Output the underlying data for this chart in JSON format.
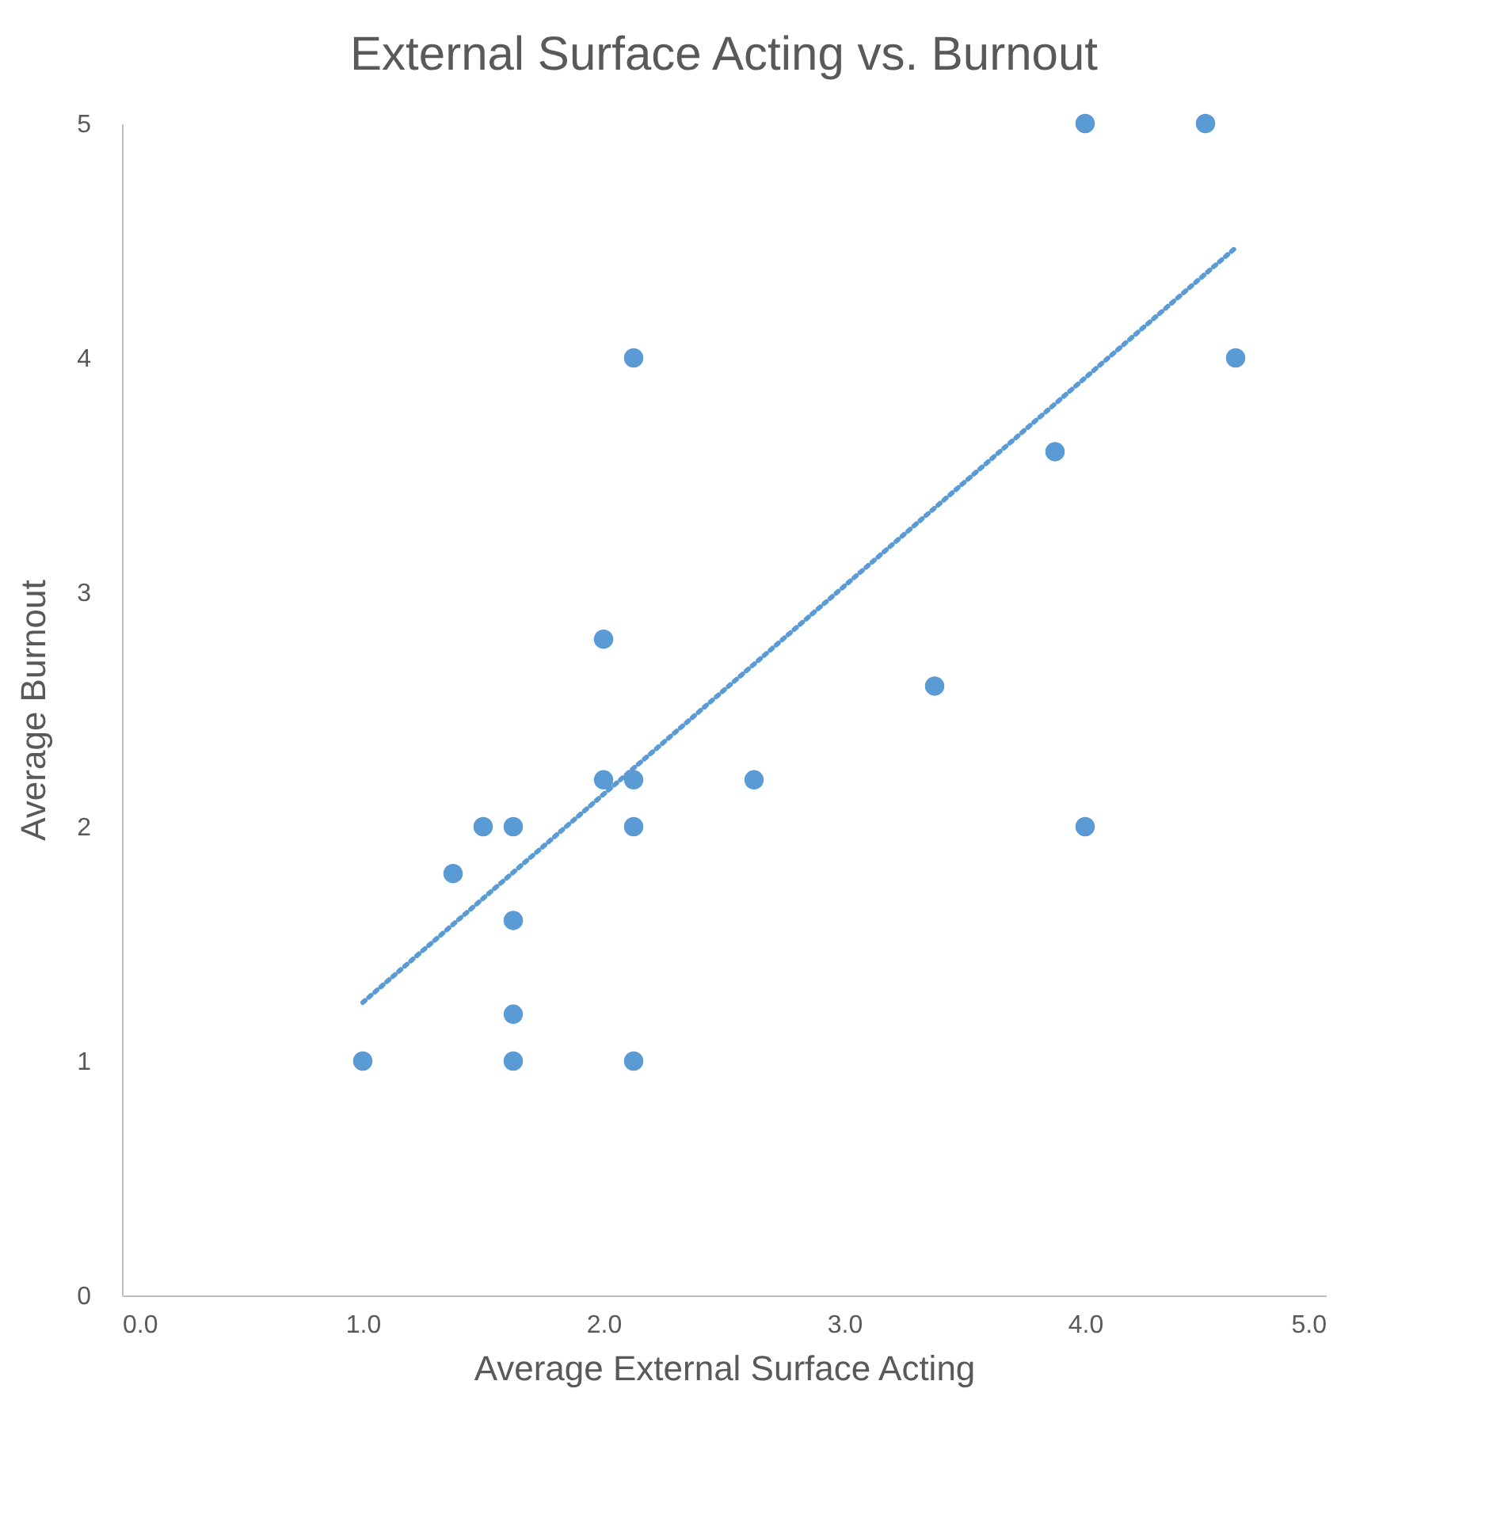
{
  "chart_data": {
    "type": "scatter",
    "title": "External Surface Acting vs. Burnout",
    "xlabel": "Average External Surface Acting",
    "ylabel": "Average Burnout",
    "xlim": [
      0,
      5
    ],
    "xticks": [
      {
        "value": 0,
        "label": "0.0"
      },
      {
        "value": 1,
        "label": "1.0"
      },
      {
        "value": 2,
        "label": "2.0"
      },
      {
        "value": 3,
        "label": "3.0"
      },
      {
        "value": 4,
        "label": "4.0"
      },
      {
        "value": 5,
        "label": "5.0"
      }
    ],
    "ylim": [
      0,
      5
    ],
    "yticks": [
      0,
      1,
      2,
      3,
      4,
      5
    ],
    "grid": false,
    "series": [
      {
        "color": "#5b9bd5",
        "marker": "circle",
        "x": [
          1.0,
          1.375,
          1.5,
          1.625,
          1.625,
          1.625,
          1.625,
          2.0,
          2.0,
          2.125,
          2.125,
          2.125,
          2.125,
          2.625,
          3.375,
          3.875,
          4.0,
          4.0,
          4.5,
          4.625
        ],
        "values": [
          1,
          1.8,
          2,
          2,
          1.6,
          1.2,
          1,
          2.8,
          2.2,
          4,
          2.2,
          2,
          1,
          2.2,
          2.6,
          3.6,
          5,
          2,
          5,
          4
        ]
      },
      {
        "type": "line",
        "color": "#5b9bd5",
        "line_style": "dotted",
        "x": [
          1.0,
          4.625
        ],
        "values": [
          1.25,
          4.47
        ]
      }
    ]
  }
}
